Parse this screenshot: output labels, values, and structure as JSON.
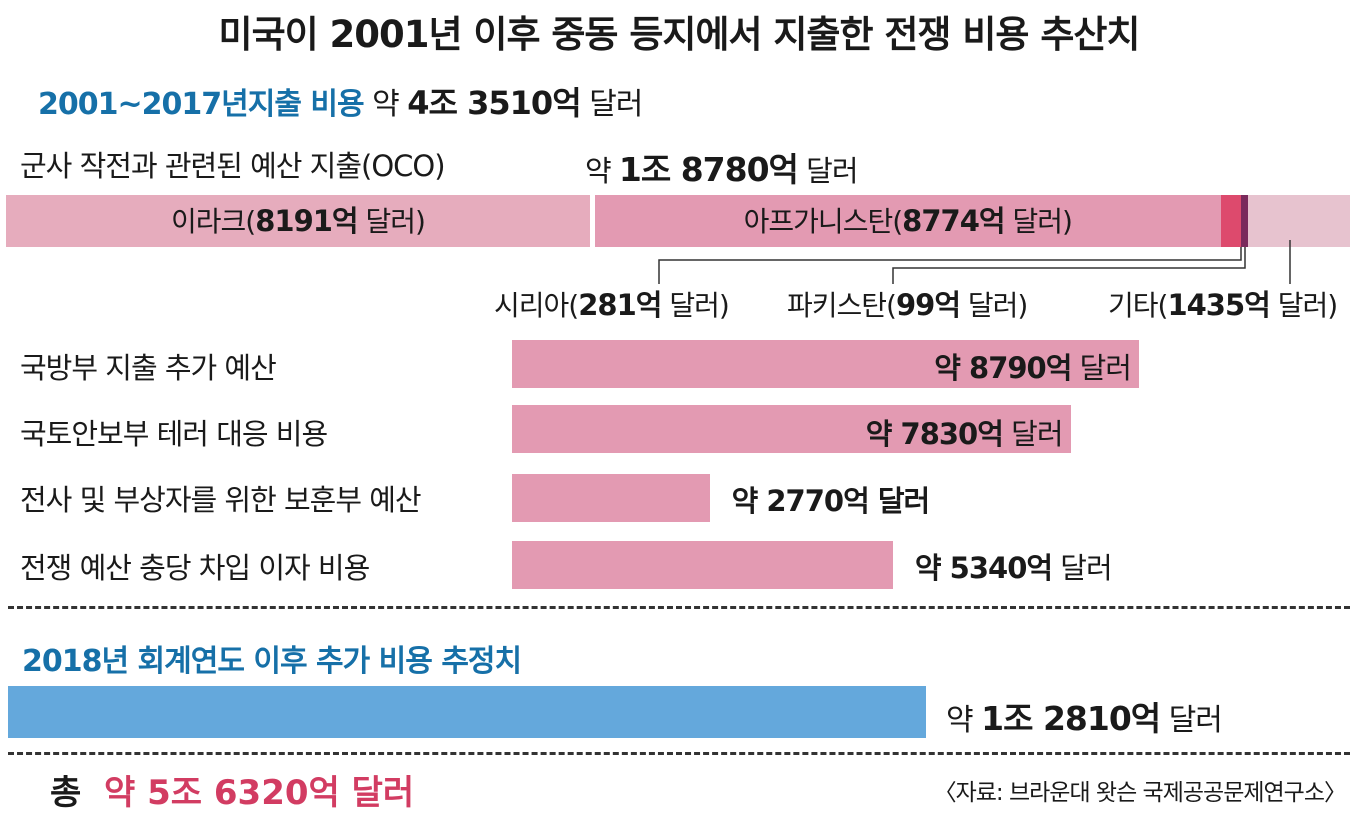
{
  "title": "미국이 2001년 이후 중동 등지에서 지출한 전쟁 비용 추산치",
  "subtitle": {
    "period": "2001~2017년지출 비용",
    "prefix": "약",
    "amount": "4조 3510억",
    "unit": "달러"
  },
  "oco": {
    "label": "군사 작전과 관련된 예산 지출(OCO)",
    "total_prefix": "약",
    "total_amount": "1조 8780억",
    "total_unit": "달러"
  },
  "colors": {
    "iraq": "#e6acbd",
    "afghanistan": "#e39ab2",
    "syria": "#dd4a6d",
    "pakistan": "#7a2a5c",
    "other": "#e7c3cf",
    "bar": "#e39ab2",
    "future_bar": "#64a8dc",
    "accent_blue": "#1670a8",
    "total_red": "#d23c62"
  },
  "chart_data": [
    {
      "type": "bar",
      "orientation": "horizontal-stacked",
      "series": [
        {
          "name": "이라크",
          "value": 8191,
          "unit": "억 달러"
        },
        {
          "name": "아프가니스탄",
          "value": 8774,
          "unit": "억 달러"
        },
        {
          "name": "시리아",
          "value": 281,
          "unit": "억 달러"
        },
        {
          "name": "파키스탄",
          "value": 99,
          "unit": "억 달러"
        },
        {
          "name": "기타",
          "value": 1435,
          "unit": "억 달러"
        }
      ],
      "labels": [
        {
          "name": "이라크(",
          "bold": "8191억",
          "tail": " 달러)"
        },
        {
          "name": "아프가니스탄(",
          "bold": "8774억",
          "tail": " 달러)"
        },
        {
          "name": "시리아(",
          "bold": "281억",
          "tail": " 달러)"
        },
        {
          "name": "파키스탄(",
          "bold": "99억",
          "tail": " 달러)"
        },
        {
          "name": "기타(",
          "bold": "1435억",
          "tail": " 달러)"
        }
      ]
    },
    {
      "type": "bar",
      "orientation": "horizontal",
      "categories": [
        "국방부 지출 추가 예산",
        "국토안보부 테러 대응 비용",
        "전사 및 부상자를 위한 보훈부 예산",
        "전쟁 예산 충당 차입 이자 비용"
      ],
      "values": [
        8790,
        7830,
        2770,
        5340
      ],
      "unit": "억 달러",
      "value_labels": [
        {
          "bold": "약 8790억",
          "tail": " 달러"
        },
        {
          "bold": "약 7830억",
          "tail": " 달러"
        },
        {
          "bold": "약 2770억 달러",
          "tail": ""
        },
        {
          "bold": "약 5340억",
          "tail": " 달러"
        }
      ]
    },
    {
      "type": "bar",
      "orientation": "horizontal",
      "categories": [
        "2018년 회계연도 이후 추가 비용 추정치"
      ],
      "values": [
        12810
      ],
      "unit": "억 달러",
      "value_label": {
        "prefix": "약 ",
        "bold": "1조 2810억",
        "tail": " 달러"
      }
    }
  ],
  "future": {
    "label": "2018년 회계연도 이후 추가 비용 추정치"
  },
  "total": {
    "label": "총",
    "value": "약 5조 6320억 달러"
  },
  "source": "〈자료: 브라운대 왓슨 국제공공문제연구소〉"
}
